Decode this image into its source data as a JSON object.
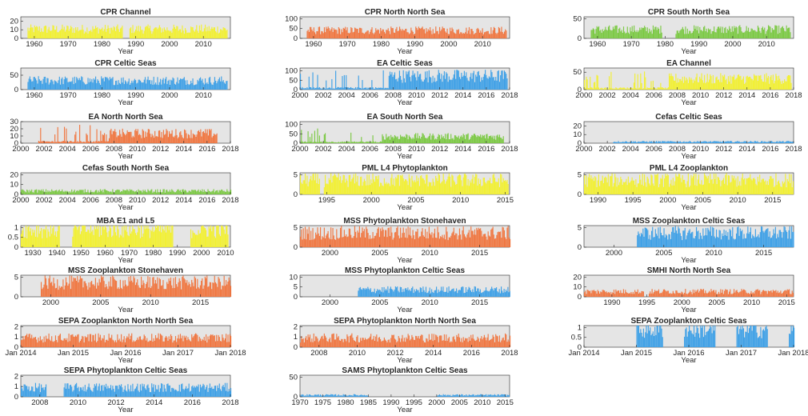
{
  "colors": {
    "orange": "#f07640",
    "yellow": "#f2f031",
    "green": "#7bc943",
    "blue": "#3ea0e6",
    "panel_bg": "#e5e5e5"
  },
  "chart_data": [
    {
      "type": "bar",
      "title": "CPR Channel",
      "xlabel": "Year",
      "color": "yellow",
      "xlim": [
        1956,
        2018
      ],
      "ylim": [
        0,
        25
      ],
      "yticks": [
        "20",
        "10",
        "0"
      ],
      "xticks": [
        "1960",
        "1970",
        "1980",
        "1990",
        "2000",
        "2010"
      ],
      "x_range": [
        1958,
        2017
      ],
      "typical_value": 12,
      "gaps": [
        [
          1986,
          1988
        ]
      ]
    },
    {
      "type": "bar",
      "title": "CPR North North Sea",
      "xlabel": "Year",
      "color": "orange",
      "xlim": [
        1956,
        2018
      ],
      "ylim": [
        0,
        110
      ],
      "yticks": [
        "100",
        "50",
        "0"
      ],
      "xticks": [
        "1960",
        "1970",
        "1980",
        "1990",
        "2000",
        "2010"
      ],
      "x_range": [
        1958,
        2017
      ],
      "typical_value": 45,
      "gaps": []
    },
    {
      "type": "bar",
      "title": "CPR South North Sea",
      "xlabel": "Year",
      "color": "green",
      "xlim": [
        1956,
        2018
      ],
      "ylim": [
        0,
        55
      ],
      "yticks": [
        "50",
        "0"
      ],
      "xticks": [
        "1960",
        "1970",
        "1980",
        "1990",
        "2000",
        "2010"
      ],
      "x_range": [
        1958,
        2017
      ],
      "typical_value": 25,
      "gaps": [
        [
          1979,
          1983
        ]
      ]
    },
    {
      "type": "bar",
      "title": "CPR Celtic Seas",
      "xlabel": "Year",
      "color": "blue",
      "xlim": [
        1956,
        2018
      ],
      "ylim": [
        0,
        75
      ],
      "yticks": [
        "50",
        "0"
      ],
      "xticks": [
        "1960",
        "1970",
        "1980",
        "1990",
        "2000",
        "2010"
      ],
      "x_range": [
        1958,
        2017
      ],
      "typical_value": 35,
      "gaps": []
    },
    {
      "type": "bar",
      "title": "EA Celtic Seas",
      "xlabel": "Year",
      "color": "blue",
      "xlim": [
        2000,
        2018
      ],
      "ylim": [
        0,
        115
      ],
      "yticks": [
        "100",
        "50",
        "0"
      ],
      "xticks": [
        "2000",
        "2002",
        "2004",
        "2006",
        "2008",
        "2010",
        "2012",
        "2014",
        "2016",
        "2018"
      ],
      "x_range": [
        2000,
        2017.8
      ],
      "typical_value": 20,
      "dense_from": 2007.6,
      "dense_value": 80,
      "gaps": []
    },
    {
      "type": "bar",
      "title": "EA Channel",
      "xlabel": "Year",
      "color": "yellow",
      "xlim": [
        2000,
        2018
      ],
      "ylim": [
        0,
        62
      ],
      "yticks": [
        "50",
        "0"
      ],
      "xticks": [
        "2000",
        "2002",
        "2004",
        "2006",
        "2008",
        "2010",
        "2012",
        "2014",
        "2016",
        "2018"
      ],
      "x_range": [
        2000,
        2017.8
      ],
      "typical_value": 10,
      "dense_from": 2007.2,
      "dense_value": 35,
      "gaps": []
    },
    {
      "type": "bar",
      "title": "EA North North Sea",
      "xlabel": "Year",
      "color": "orange",
      "xlim": [
        2000,
        2018
      ],
      "ylim": [
        0,
        30
      ],
      "yticks": [
        "30",
        "20",
        "10",
        "0"
      ],
      "xticks": [
        "2000",
        "2002",
        "2004",
        "2006",
        "2008",
        "2010",
        "2012",
        "2014",
        "2016",
        "2018"
      ],
      "x_range": [
        2001.5,
        2016.8
      ],
      "typical_value": 5,
      "dense_from": 2007.5,
      "dense_value": 15,
      "gaps": []
    },
    {
      "type": "bar",
      "title": "EA South North Sea",
      "xlabel": "Year",
      "color": "green",
      "xlim": [
        2000,
        2018
      ],
      "ylim": [
        0,
        115
      ],
      "yticks": [
        "100",
        "50",
        "0"
      ],
      "xticks": [
        "2000",
        "2002",
        "2004",
        "2006",
        "2008",
        "2010",
        "2012",
        "2014",
        "2016",
        "2018"
      ],
      "x_range": [
        2000,
        2017.5
      ],
      "typical_value": 15,
      "dense_from": 2007,
      "dense_value": 40,
      "gaps": []
    },
    {
      "type": "bar",
      "title": "Cefas Celtic Seas",
      "xlabel": "Year",
      "color": "blue",
      "xlim": [
        2000,
        2018
      ],
      "ylim": [
        0,
        25
      ],
      "yticks": [
        "20",
        "10",
        "0"
      ],
      "xticks": [
        "2000",
        "2002",
        "2004",
        "2006",
        "2008",
        "2010",
        "2012",
        "2014",
        "2016",
        "2018"
      ],
      "x_range": [
        2002.5,
        2018
      ],
      "typical_value": 2,
      "gaps": []
    },
    {
      "type": "bar",
      "title": "Cefas South North Sea",
      "xlabel": "Year",
      "color": "green",
      "xlim": [
        2000,
        2018
      ],
      "ylim": [
        0,
        22
      ],
      "yticks": [
        "20",
        "10",
        "0"
      ],
      "xticks": [
        "2000",
        "2002",
        "2004",
        "2006",
        "2008",
        "2010",
        "2012",
        "2014",
        "2016",
        "2018"
      ],
      "x_range": [
        2000,
        2018
      ],
      "typical_value": 4,
      "gaps": []
    },
    {
      "type": "bar",
      "title": "PML L4 Phytoplankton",
      "xlabel": "Year",
      "color": "yellow",
      "xlim": [
        1992,
        2015.5
      ],
      "ylim": [
        0,
        5.5
      ],
      "yticks": [
        "5",
        "0"
      ],
      "xticks": [
        "1995",
        "2000",
        "2005",
        "2010",
        "2015"
      ],
      "x_range": [
        1992,
        2015.3
      ],
      "typical_value": 4,
      "gaps": [
        [
          1994.2,
          1994.6
        ]
      ]
    },
    {
      "type": "bar",
      "title": "PML L4 Zooplankton",
      "xlabel": "Year",
      "color": "yellow",
      "xlim": [
        1988,
        2018
      ],
      "ylim": [
        0,
        5.5
      ],
      "yticks": [
        "5",
        "0"
      ],
      "xticks": [
        "1990",
        "1995",
        "2000",
        "2005",
        "2010",
        "2015"
      ],
      "x_range": [
        1988,
        2018
      ],
      "typical_value": 4,
      "gaps": []
    },
    {
      "type": "bar",
      "title": "MBA E1 and L5",
      "xlabel": "Year",
      "color": "yellow",
      "xlim": [
        1925,
        2012
      ],
      "ylim": [
        0,
        1.1
      ],
      "yticks": [
        "1",
        "0.5",
        "0"
      ],
      "xticks": [
        "1930",
        "1940",
        "1950",
        "1960",
        "1970",
        "1980",
        "1990",
        "2000",
        "2010"
      ],
      "x_range": [
        1925,
        2011
      ],
      "typical_value": 1,
      "gaps": [
        [
          1941,
          1946
        ],
        [
          1988,
          1995
        ]
      ]
    },
    {
      "type": "bar",
      "title": "MSS Phytoplankton Stonehaven",
      "xlabel": "Year",
      "color": "orange",
      "xlim": [
        1997,
        2018
      ],
      "ylim": [
        0,
        5.5
      ],
      "yticks": [
        "5",
        "0"
      ],
      "xticks": [
        "2000",
        "2005",
        "2010",
        "2015"
      ],
      "x_range": [
        1997,
        2018
      ],
      "typical_value": 4,
      "gaps": []
    },
    {
      "type": "bar",
      "title": "MSS Zooplankton Celtic Seas",
      "xlabel": "Year",
      "color": "blue",
      "xlim": [
        1997,
        2018
      ],
      "ylim": [
        0,
        5.5
      ],
      "yticks": [
        "5",
        "0"
      ],
      "xticks": [
        "2000",
        "2005",
        "2010",
        "2015"
      ],
      "x_range": [
        2002.3,
        2018
      ],
      "typical_value": 4,
      "gaps": []
    },
    {
      "type": "bar",
      "title": "MSS Zooplankton Stonehaven",
      "xlabel": "Year",
      "color": "orange",
      "xlim": [
        1997,
        2018
      ],
      "ylim": [
        0,
        5.5
      ],
      "yticks": [
        "5",
        "0"
      ],
      "xticks": [
        "2000",
        "2005",
        "2010",
        "2015"
      ],
      "x_range": [
        1999,
        2018
      ],
      "typical_value": 4,
      "gaps": []
    },
    {
      "type": "bar",
      "title": "MSS Phytoplankton Celtic Seas",
      "xlabel": "Year",
      "color": "blue",
      "xlim": [
        1997,
        2018
      ],
      "ylim": [
        0,
        11
      ],
      "yticks": [
        "10",
        "5",
        "0"
      ],
      "xticks": [
        "2000",
        "2005",
        "2010",
        "2015"
      ],
      "x_range": [
        2002.8,
        2018
      ],
      "typical_value": 4,
      "gaps": []
    },
    {
      "type": "bar",
      "title": "SMHI North North Sea",
      "xlabel": "Year",
      "color": "orange",
      "xlim": [
        1986,
        2016
      ],
      "ylim": [
        0,
        22
      ],
      "yticks": [
        "20",
        "10",
        "0"
      ],
      "xticks": [
        "1990",
        "1995",
        "2000",
        "2005",
        "2010",
        "2015"
      ],
      "x_range": [
        1986,
        2016
      ],
      "typical_value": 6,
      "gaps": [
        [
          1994.5,
          1995.2
        ]
      ]
    },
    {
      "type": "bar",
      "title": "SEPA Zooplankton North North Sea",
      "xlabel": "Year",
      "color": "orange",
      "xlim": [
        2014,
        2018
      ],
      "ylim": [
        0,
        2.1
      ],
      "yticks": [
        "2",
        "1",
        "0"
      ],
      "xticks": [
        "Jan 2014",
        "Jan 2015",
        "Jan 2016",
        "Jan 2017",
        "Jan 2018"
      ],
      "x_range": [
        2014,
        2018
      ],
      "typical_value": 1,
      "gaps": []
    },
    {
      "type": "bar",
      "title": "SEPA Phytoplankton North North Sea",
      "xlabel": "Year",
      "color": "orange",
      "xlim": [
        2007,
        2018
      ],
      "ylim": [
        0,
        2.1
      ],
      "yticks": [
        "2",
        "1",
        "0"
      ],
      "xticks": [
        "2008",
        "2010",
        "2012",
        "2014",
        "2016",
        "2018"
      ],
      "x_range": [
        2007,
        2018
      ],
      "typical_value": 1,
      "gaps": []
    },
    {
      "type": "bar",
      "title": "SEPA Zooplankton Celtic Seas",
      "xlabel": "Year",
      "color": "blue",
      "xlim": [
        2014,
        2018
      ],
      "ylim": [
        0,
        1.1
      ],
      "yticks": [
        "1",
        "0.5",
        "0"
      ],
      "xticks": [
        "Jan 2014",
        "Jan 2015",
        "Jan 2016",
        "Jan 2017",
        "Jan 2018"
      ],
      "x_range": [
        2015,
        2018
      ],
      "typical_value": 1,
      "gaps": [
        [
          2015.5,
          2015.9
        ],
        [
          2016.5,
          2016.9
        ],
        [
          2017.5,
          2017.9
        ]
      ]
    },
    {
      "type": "bar",
      "title": "SEPA Phytoplankton Celtic Seas",
      "xlabel": "Year",
      "color": "blue",
      "xlim": [
        2007,
        2018
      ],
      "ylim": [
        0,
        2.1
      ],
      "yticks": [
        "2",
        "1",
        "0"
      ],
      "xticks": [
        "2008",
        "2010",
        "2012",
        "2014",
        "2016",
        "2018"
      ],
      "x_range": [
        2007,
        2018
      ],
      "typical_value": 1,
      "gaps": [
        [
          2008.3,
          2009.2
        ]
      ]
    },
    {
      "type": "bar",
      "title": "SAMS Phytoplankton Celtic Seas",
      "xlabel": "Year",
      "color": "blue",
      "xlim": [
        1970,
        2016
      ],
      "ylim": [
        0,
        55
      ],
      "yticks": [
        "50",
        "0"
      ],
      "xticks": [
        "1970",
        "1975",
        "1980",
        "1985",
        "1990",
        "1995",
        "2000",
        "2005",
        "2010",
        "2015"
      ],
      "x_range": [
        1970,
        2016
      ],
      "typical_value": 5,
      "gaps": [
        [
          1985,
          2000
        ]
      ]
    }
  ]
}
